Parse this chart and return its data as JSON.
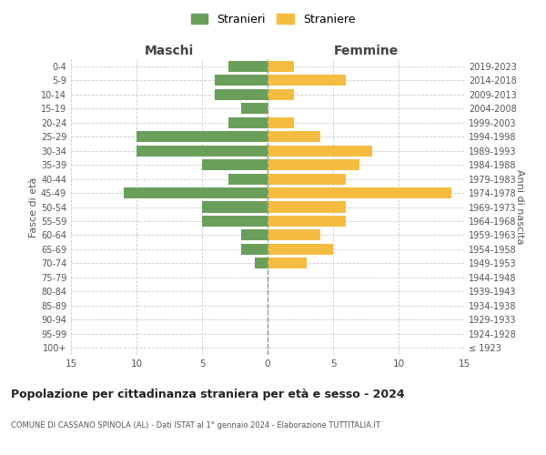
{
  "age_groups": [
    "100+",
    "95-99",
    "90-94",
    "85-89",
    "80-84",
    "75-79",
    "70-74",
    "65-69",
    "60-64",
    "55-59",
    "50-54",
    "45-49",
    "40-44",
    "35-39",
    "30-34",
    "25-29",
    "20-24",
    "15-19",
    "10-14",
    "5-9",
    "0-4"
  ],
  "birth_years": [
    "≤ 1923",
    "1924-1928",
    "1929-1933",
    "1934-1938",
    "1939-1943",
    "1944-1948",
    "1949-1953",
    "1954-1958",
    "1959-1963",
    "1964-1968",
    "1969-1973",
    "1974-1978",
    "1979-1983",
    "1984-1988",
    "1989-1993",
    "1994-1998",
    "1999-2003",
    "2004-2008",
    "2009-2013",
    "2014-2018",
    "2019-2023"
  ],
  "males": [
    0,
    0,
    0,
    0,
    0,
    0,
    1,
    2,
    2,
    5,
    5,
    11,
    3,
    5,
    10,
    10,
    3,
    2,
    4,
    4,
    3
  ],
  "females": [
    0,
    0,
    0,
    0,
    0,
    0,
    3,
    5,
    4,
    6,
    6,
    14,
    6,
    7,
    8,
    4,
    2,
    0,
    2,
    6,
    2
  ],
  "male_color": "#6a9f5b",
  "female_color": "#f5bc42",
  "title": "Popolazione per cittadinanza straniera per età e sesso - 2024",
  "subtitle": "COMUNE DI CASSANO SPINOLA (AL) - Dati ISTAT al 1° gennaio 2024 - Elaborazione TUTTITALIA.IT",
  "xlabel_left": "Maschi",
  "xlabel_right": "Femmine",
  "ylabel_left": "Fasce di età",
  "ylabel_right": "Anni di nascita",
  "legend_males": "Stranieri",
  "legend_females": "Straniere",
  "xlim": 15,
  "background_color": "#ffffff",
  "grid_color": "#cccccc"
}
